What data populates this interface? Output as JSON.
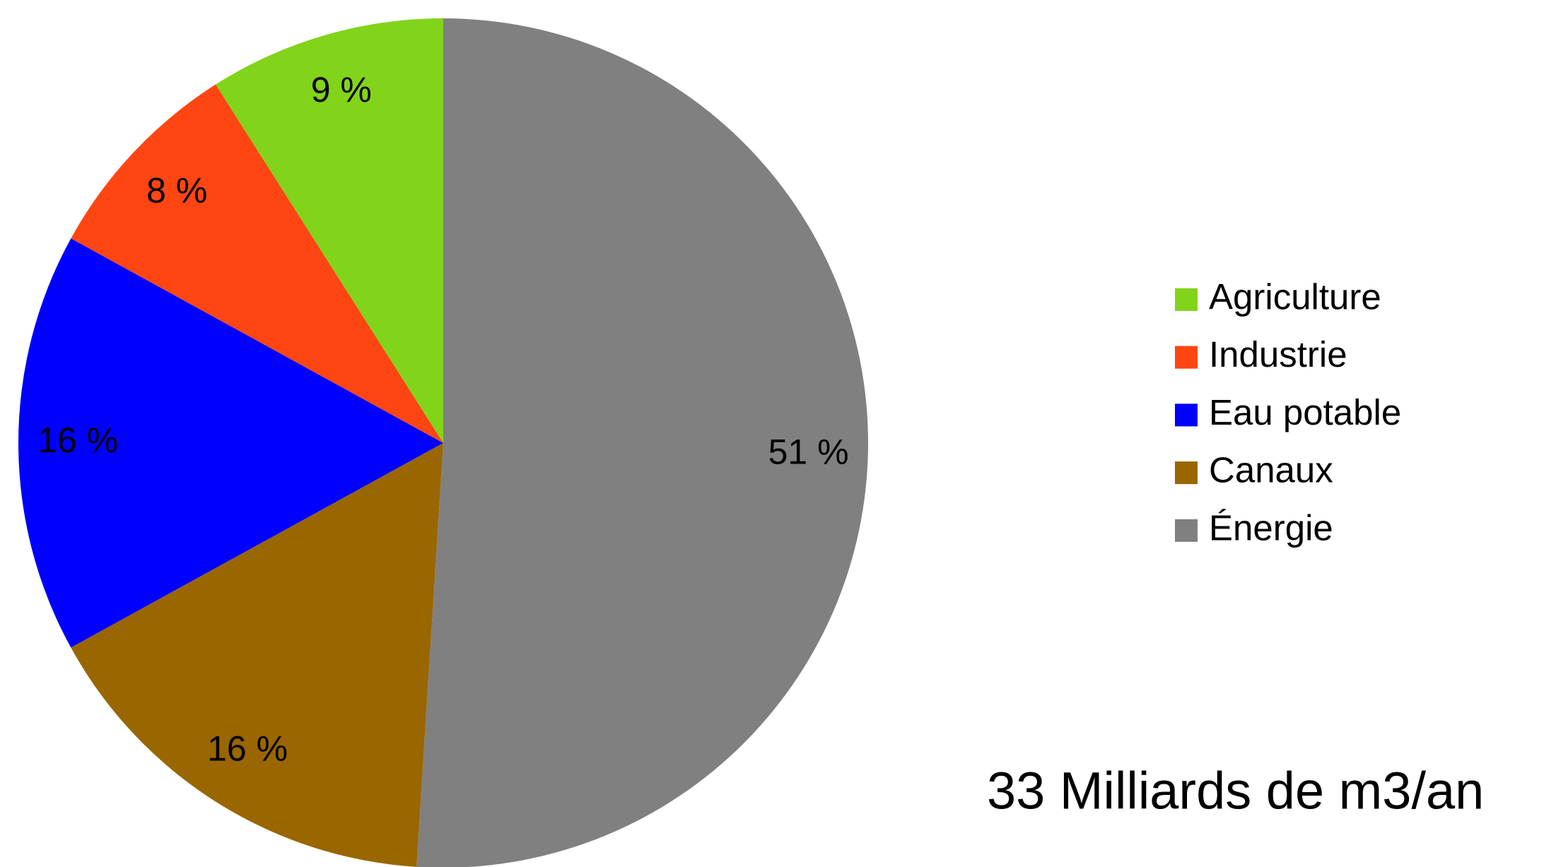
{
  "chart_data": {
    "type": "pie",
    "categories": [
      "Agriculture",
      "Industrie",
      "Eau potable",
      "Canaux",
      "Énergie"
    ],
    "values": [
      9,
      8,
      16,
      16,
      51
    ],
    "value_labels": [
      "9 %",
      "8 %",
      "16 %",
      "16 %",
      "51 %"
    ],
    "colors": [
      "#81d41a",
      "#ff4612",
      "#0000ff",
      "#996600",
      "#808080"
    ],
    "legend": "right",
    "annotation": "33 Milliards de m3/an"
  }
}
